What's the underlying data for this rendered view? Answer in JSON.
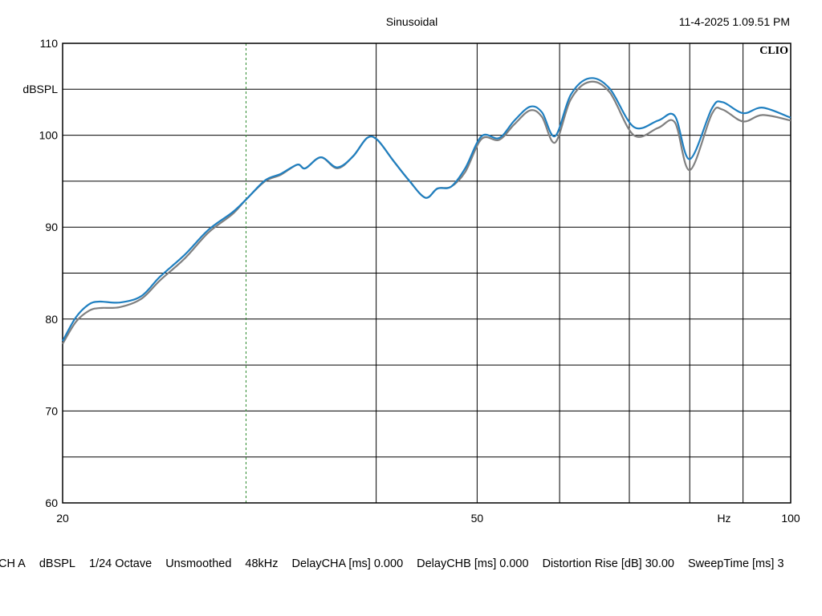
{
  "chart_data": {
    "type": "line",
    "title": "Sinusoidal",
    "timestamp": "11-4-2025 1.09.51 PM",
    "brand": "CLIO",
    "y_label": "dBSPL",
    "x_label": "Hz",
    "log_x": true,
    "grid": true,
    "xlim": [
      20,
      100
    ],
    "xticks": [
      20,
      50,
      100
    ],
    "x_minor_grid": [
      40,
      60,
      70,
      80,
      90
    ],
    "cursor_x": 30,
    "ylim": [
      60,
      110
    ],
    "yticks": [
      60,
      70,
      80,
      90,
      100,
      110
    ],
    "y_minor_grid": [
      65,
      75,
      85,
      95,
      105
    ],
    "x": [
      20,
      20.6,
      21.2,
      21.7,
      22.7,
      23.8,
      24.8,
      26.2,
      27.6,
      29.1,
      30,
      31.3,
      32.4,
      33.6,
      34.2,
      35.4,
      36.7,
      38.0,
      39.2,
      40.1,
      41.5,
      43.0,
      44.6,
      45.8,
      47.2,
      48.7,
      50.5,
      52.5,
      54.3,
      56.2,
      57.7,
      59.4,
      61.5,
      64.1,
      67.0,
      70.7,
      74.6,
      77.4,
      80.0,
      84.0,
      86.0,
      90.0,
      94.0,
      100
    ],
    "series": [
      {
        "color": "#808080",
        "values": [
          77.3,
          79.7,
          80.9,
          81.2,
          81.3,
          82.2,
          84.2,
          86.6,
          89.4,
          91.4,
          93.0,
          95.0,
          95.7,
          96.8,
          96.4,
          97.6,
          96.4,
          97.7,
          99.7,
          99.5,
          97.3,
          95.1,
          93.2,
          94.2,
          94.4,
          96.0,
          99.6,
          99.5,
          101.2,
          102.7,
          102.0,
          99.2,
          103.9,
          105.8,
          104.7,
          100.0,
          100.8,
          101.4,
          96.2,
          102.3,
          102.8,
          101.5,
          102.2,
          101.6
        ]
      },
      {
        "color": "#1f7fc0",
        "values": [
          77.6,
          80.2,
          81.6,
          81.9,
          81.8,
          82.5,
          84.6,
          87.0,
          89.7,
          91.6,
          93.0,
          95.1,
          95.8,
          96.8,
          96.4,
          97.6,
          96.5,
          97.7,
          99.7,
          99.5,
          97.3,
          95.1,
          93.2,
          94.2,
          94.4,
          96.4,
          99.9,
          99.7,
          101.6,
          103.1,
          102.5,
          99.9,
          104.4,
          106.2,
          105.1,
          100.9,
          101.6,
          102.1,
          97.4,
          102.9,
          103.6,
          102.4,
          103.0,
          101.9
        ]
      }
    ],
    "footer": [
      "CH A",
      "dBSPL",
      "1/24 Octave",
      "Unsmoothed",
      "48kHz",
      "DelayCHA [ms] 0.000",
      "DelayCHB [ms] 0.000",
      "Distortion Rise [dB] 30.00",
      "SweepTime [ms] 3"
    ]
  }
}
